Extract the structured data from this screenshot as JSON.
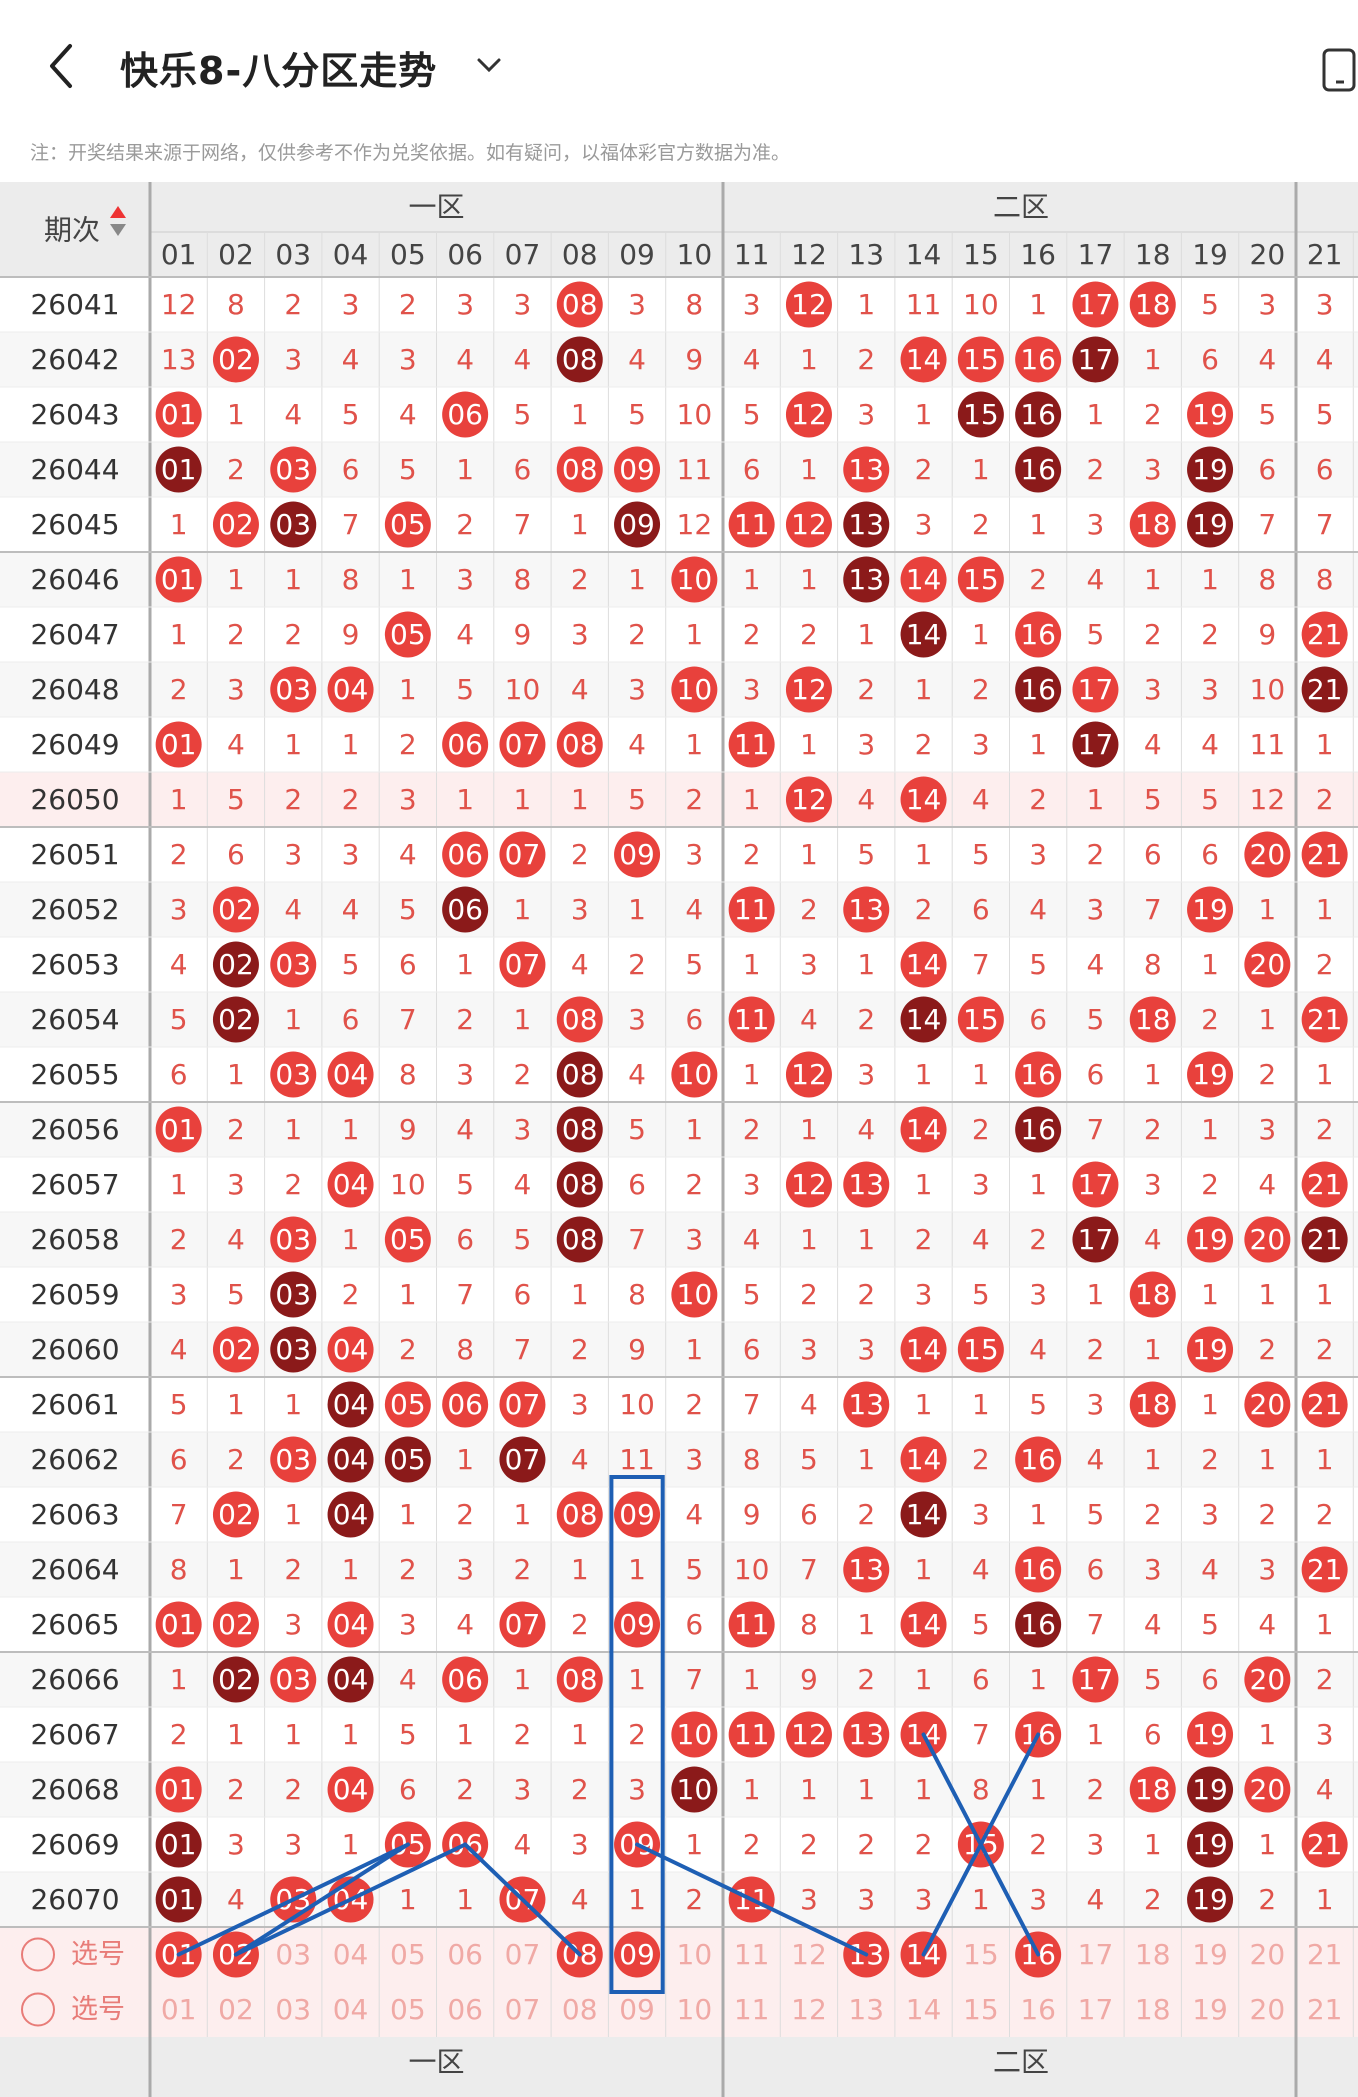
{
  "header": {
    "title": "快乐8-八分区走势",
    "notice": "注：开奖结果来源于网络，仅供参考不作为兑奖依据。如有疑问，以福体彩官方数据为准。"
  },
  "table": {
    "period_header": "期次",
    "zones": [
      "一区",
      "二区"
    ],
    "columns": [
      "01",
      "02",
      "03",
      "04",
      "05",
      "06",
      "07",
      "08",
      "09",
      "10",
      "11",
      "12",
      "13",
      "14",
      "15",
      "16",
      "17",
      "18",
      "19",
      "20",
      "21"
    ],
    "rows": [
      {
        "period": "26041",
        "cells": [
          12,
          8,
          2,
          3,
          2,
          3,
          3,
          "08",
          3,
          8,
          3,
          "12",
          1,
          11,
          10,
          1,
          "17",
          "18",
          5,
          3,
          3
        ]
      },
      {
        "period": "26042",
        "cells": [
          13,
          "02",
          3,
          4,
          3,
          4,
          4,
          "08",
          4,
          9,
          4,
          1,
          2,
          "14",
          "15",
          "16",
          "17",
          1,
          6,
          4,
          4
        ]
      },
      {
        "period": "26043",
        "cells": [
          "01",
          1,
          4,
          5,
          4,
          "06",
          5,
          1,
          5,
          10,
          5,
          "12",
          3,
          1,
          "15",
          "16",
          1,
          2,
          "19",
          5,
          5
        ]
      },
      {
        "period": "26044",
        "cells": [
          "01",
          2,
          "03",
          6,
          5,
          1,
          6,
          "08",
          "09",
          11,
          6,
          1,
          "13",
          2,
          1,
          "16",
          2,
          3,
          "19",
          6,
          6
        ]
      },
      {
        "period": "26045",
        "cells": [
          1,
          "02",
          "03",
          7,
          "05",
          2,
          7,
          1,
          "09",
          12,
          "11",
          "12",
          "13",
          3,
          2,
          1,
          3,
          "18",
          "19",
          7,
          7
        ]
      },
      {
        "period": "26046",
        "cells": [
          "01",
          1,
          1,
          8,
          1,
          3,
          8,
          2,
          1,
          "10",
          1,
          1,
          "13",
          "14",
          "15",
          2,
          4,
          1,
          1,
          8,
          8
        ]
      },
      {
        "period": "26047",
        "cells": [
          1,
          2,
          2,
          9,
          "05",
          4,
          9,
          3,
          2,
          1,
          2,
          2,
          1,
          "14",
          1,
          "16",
          5,
          2,
          2,
          9,
          "21"
        ]
      },
      {
        "period": "26048",
        "cells": [
          2,
          3,
          "03",
          "04",
          1,
          5,
          10,
          4,
          3,
          "10",
          3,
          "12",
          2,
          1,
          2,
          "16",
          "17",
          3,
          3,
          10,
          "21"
        ]
      },
      {
        "period": "26049",
        "cells": [
          "01",
          4,
          1,
          1,
          2,
          "06",
          "07",
          "08",
          4,
          1,
          "11",
          1,
          3,
          2,
          3,
          1,
          "17",
          4,
          4,
          11,
          1
        ]
      },
      {
        "period": "26050",
        "cells": [
          1,
          5,
          2,
          2,
          3,
          1,
          1,
          1,
          5,
          2,
          1,
          "12",
          4,
          "14",
          4,
          2,
          1,
          5,
          5,
          12,
          2
        ]
      },
      {
        "period": "26051",
        "cells": [
          2,
          6,
          3,
          3,
          4,
          "06",
          "07",
          2,
          "09",
          3,
          2,
          1,
          5,
          1,
          5,
          3,
          2,
          6,
          6,
          "20",
          "21"
        ]
      },
      {
        "period": "26052",
        "cells": [
          3,
          "02",
          4,
          4,
          5,
          "06",
          1,
          3,
          1,
          4,
          "11",
          2,
          "13",
          2,
          6,
          4,
          3,
          7,
          "19",
          1,
          1
        ]
      },
      {
        "period": "26053",
        "cells": [
          4,
          "02",
          "03",
          5,
          6,
          1,
          "07",
          4,
          2,
          5,
          1,
          3,
          1,
          "14",
          7,
          5,
          4,
          8,
          1,
          "20",
          2
        ]
      },
      {
        "period": "26054",
        "cells": [
          5,
          "02",
          1,
          6,
          7,
          2,
          1,
          "08",
          3,
          6,
          "11",
          4,
          2,
          "14",
          "15",
          6,
          5,
          "18",
          2,
          1,
          "21"
        ]
      },
      {
        "period": "26055",
        "cells": [
          6,
          1,
          "03",
          "04",
          8,
          3,
          2,
          "08",
          4,
          "10",
          1,
          "12",
          3,
          1,
          1,
          "16",
          6,
          1,
          "19",
          2,
          1
        ]
      },
      {
        "period": "26056",
        "cells": [
          "01",
          2,
          1,
          1,
          9,
          4,
          3,
          "08",
          5,
          1,
          2,
          1,
          4,
          "14",
          2,
          "16",
          7,
          2,
          1,
          3,
          2
        ]
      },
      {
        "period": "26057",
        "cells": [
          1,
          3,
          2,
          "04",
          10,
          5,
          4,
          "08",
          6,
          2,
          3,
          "12",
          "13",
          1,
          3,
          1,
          "17",
          3,
          2,
          4,
          "21"
        ]
      },
      {
        "period": "26058",
        "cells": [
          2,
          4,
          "03",
          1,
          "05",
          6,
          5,
          "08",
          7,
          3,
          4,
          1,
          1,
          2,
          4,
          2,
          "17",
          4,
          "19",
          "20",
          "21"
        ]
      },
      {
        "period": "26059",
        "cells": [
          3,
          5,
          "03",
          2,
          1,
          7,
          6,
          1,
          8,
          "10",
          5,
          2,
          2,
          3,
          5,
          3,
          1,
          "18",
          1,
          1,
          1
        ]
      },
      {
        "period": "26060",
        "cells": [
          4,
          "02",
          "03",
          "04",
          2,
          8,
          7,
          2,
          9,
          1,
          6,
          3,
          3,
          "14",
          "15",
          4,
          2,
          1,
          "19",
          2,
          2
        ]
      },
      {
        "period": "26061",
        "cells": [
          5,
          1,
          1,
          "04",
          "05",
          "06",
          "07",
          3,
          10,
          2,
          7,
          4,
          "13",
          1,
          1,
          5,
          3,
          "18",
          1,
          "20",
          "21"
        ]
      },
      {
        "period": "26062",
        "cells": [
          6,
          2,
          "03",
          "04",
          "05",
          1,
          "07",
          4,
          11,
          3,
          8,
          5,
          1,
          "14",
          2,
          "16",
          4,
          1,
          2,
          1,
          1
        ]
      },
      {
        "period": "26063",
        "cells": [
          7,
          "02",
          1,
          "04",
          1,
          2,
          1,
          "08",
          "09",
          4,
          9,
          6,
          2,
          "14",
          3,
          1,
          5,
          2,
          3,
          2,
          2
        ]
      },
      {
        "period": "26064",
        "cells": [
          8,
          1,
          2,
          1,
          2,
          3,
          2,
          1,
          1,
          5,
          10,
          7,
          "13",
          1,
          4,
          "16",
          6,
          3,
          4,
          3,
          "21"
        ]
      },
      {
        "period": "26065",
        "cells": [
          "01",
          "02",
          3,
          "04",
          3,
          4,
          "07",
          2,
          "09",
          6,
          "11",
          8,
          1,
          "14",
          5,
          "16",
          7,
          4,
          5,
          4,
          1
        ]
      },
      {
        "period": "26066",
        "cells": [
          1,
          "02",
          "03",
          "04",
          4,
          "06",
          1,
          "08",
          1,
          7,
          1,
          9,
          2,
          1,
          6,
          1,
          "17",
          5,
          6,
          "20",
          2
        ]
      },
      {
        "period": "26067",
        "cells": [
          2,
          1,
          1,
          1,
          5,
          1,
          2,
          1,
          2,
          "10",
          "11",
          "12",
          "13",
          "14",
          7,
          "16",
          1,
          6,
          "19",
          1,
          3
        ]
      },
      {
        "period": "26068",
        "cells": [
          "01",
          2,
          2,
          "04",
          6,
          2,
          3,
          2,
          3,
          "10",
          1,
          1,
          1,
          1,
          8,
          1,
          2,
          "18",
          "19",
          "20",
          4
        ]
      },
      {
        "period": "26069",
        "cells": [
          "01",
          3,
          3,
          1,
          "05",
          "06",
          4,
          3,
          "09",
          1,
          2,
          2,
          2,
          2,
          "15",
          2,
          3,
          1,
          "19",
          1,
          "21"
        ]
      },
      {
        "period": "26070",
        "cells": [
          "01",
          4,
          "03",
          "04",
          1,
          1,
          "07",
          4,
          1,
          2,
          "11",
          3,
          3,
          3,
          1,
          3,
          4,
          2,
          "19",
          2,
          1
        ]
      }
    ],
    "select_rows": [
      {
        "label": "选号",
        "cells": [
          "01",
          "02",
          "03",
          "04",
          "05",
          "06",
          "07",
          "08",
          "09",
          "10",
          "11",
          "12",
          "13",
          "14",
          "15",
          "16",
          "17",
          "18",
          "19",
          "20",
          "21"
        ],
        "selected": [
          0,
          1,
          7,
          8,
          12,
          13,
          15
        ]
      },
      {
        "label": "选号",
        "cells": [
          "01",
          "02",
          "03",
          "04",
          "05",
          "06",
          "07",
          "08",
          "09",
          "10",
          "11",
          "12",
          "13",
          "14",
          "15",
          "16",
          "17",
          "18",
          "19",
          "20",
          "21"
        ],
        "selected": []
      }
    ]
  },
  "colors": {
    "red": "#e8413c",
    "dark_red": "#8b1a1a",
    "number_text": "#e0524a",
    "period_text": "#333333",
    "header_bg": "#ececec",
    "highlight_row": "#fdeeee",
    "blue_line": "#1e5fb4"
  }
}
